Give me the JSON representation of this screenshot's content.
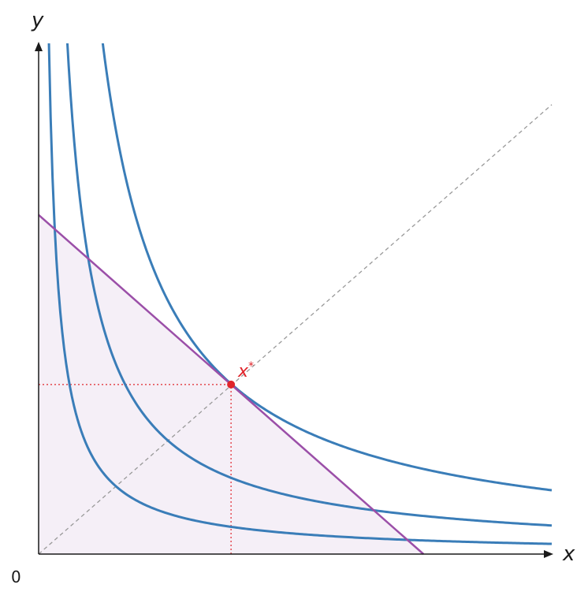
{
  "chart_data": {
    "type": "line",
    "xlabel": "x",
    "ylabel": "y",
    "origin_label": "0",
    "xlim": [
      0,
      10
    ],
    "ylim": [
      0,
      10
    ],
    "grid": false,
    "legend": "none",
    "colors": {
      "curve": "#3a7db8",
      "budget_line": "#9b4fa8",
      "budget_fill": "#f5eff7",
      "diagonal": "#999999",
      "optimum": "#e0252b",
      "axis": "#1a1a1a"
    },
    "indifference_curves": [
      {
        "k": 2.0
      },
      {
        "k": 5.6
      },
      {
        "k": 12.5
      }
    ],
    "budget_line": {
      "x_intercept": 7.5,
      "y_intercept": 6.64
    },
    "diagonal": {
      "from": [
        0,
        0
      ],
      "to": [
        10,
        8.8
      ]
    },
    "optimum": {
      "x": 3.75,
      "y": 3.32,
      "label": "x",
      "label_sup": "*"
    }
  }
}
